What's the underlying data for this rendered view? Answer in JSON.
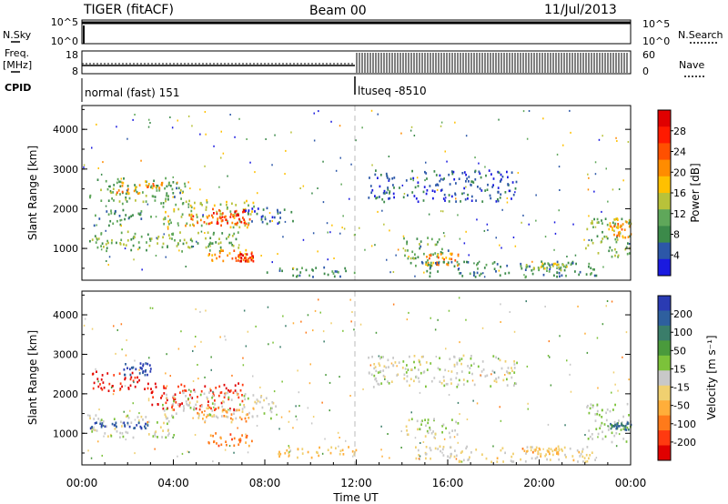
{
  "header": {
    "radar": "TIGER (fitACF)",
    "beam": "Beam 00",
    "date": "11/Jul/2013"
  },
  "strip": {
    "nsky_label": "N.Sky",
    "nsearch_label": "N.Search",
    "freq_label_1": "Freq.",
    "freq_label_2": "[MHz]",
    "nave_label": "Nave",
    "cpid_label": "CPID",
    "left_ticks_top": [
      "10^5",
      "10^0"
    ],
    "right_ticks_top": [
      "10^5",
      "10^0"
    ],
    "left_ticks_freq": [
      "18",
      "8"
    ],
    "right_ticks_nave": [
      "60",
      "0"
    ],
    "cpid_1": "normal (fast) 151",
    "cpid_2": "ltuseq -8510"
  },
  "colors": {
    "power": [
      "#1a1adf",
      "#2c57a8",
      "#3c8a4a",
      "#5fa75a",
      "#b8c23a",
      "#ffc000",
      "#ff8c00",
      "#ff5000",
      "#ff1a00",
      "#e00000"
    ],
    "velocity": [
      "#2a3bb3",
      "#2e5f9e",
      "#3a7d6a",
      "#4a9a3c",
      "#7cc23a",
      "#c8c8c8",
      "#f0d070",
      "#ffae3a",
      "#ff7a1a",
      "#ff3a10",
      "#e00000"
    ]
  },
  "chart_data": [
    {
      "type": "heatmap",
      "panel": "power",
      "ylabel": "Slant Range [km]",
      "ylim": [
        200,
        4600
      ],
      "yticks": [
        "1000",
        "2000",
        "3000",
        "4000"
      ],
      "xlim": [
        "00:00",
        "24:00"
      ],
      "colorbar": {
        "label": "Power [dB]",
        "ticks": [
          "4",
          "8",
          "12",
          "16",
          "20",
          "24",
          "28"
        ],
        "range": [
          0,
          32
        ]
      },
      "regions": [
        {
          "t": [
            0.3,
            4.5
          ],
          "range": [
            2150,
            2800
          ],
          "value": 10
        },
        {
          "t": [
            1.5,
            3.5
          ],
          "range": [
            2400,
            2750
          ],
          "value": 20
        },
        {
          "t": [
            3.5,
            7.5
          ],
          "range": [
            1550,
            2250
          ],
          "value": 14
        },
        {
          "t": [
            5.5,
            7.2
          ],
          "range": [
            1650,
            2050
          ],
          "value": 26
        },
        {
          "t": [
            4.5,
            7.5
          ],
          "range": [
            1600,
            1900
          ],
          "value": 24
        },
        {
          "t": [
            0.3,
            7.0
          ],
          "range": [
            950,
            1450
          ],
          "value": 12
        },
        {
          "t": [
            5.5,
            7.5
          ],
          "range": [
            700,
            1000
          ],
          "value": 20
        },
        {
          "t": [
            6.8,
            7.5
          ],
          "range": [
            700,
            900
          ],
          "value": 28
        },
        {
          "t": [
            7.0,
            9.2
          ],
          "range": [
            1650,
            2050
          ],
          "value": 5
        },
        {
          "t": [
            0.5,
            3.0
          ],
          "range": [
            1600,
            2000
          ],
          "value": 8
        },
        {
          "t": [
            12.5,
            19.0
          ],
          "range": [
            2200,
            3000
          ],
          "value": 5
        },
        {
          "t": [
            14.0,
            16.0
          ],
          "range": [
            600,
            1300
          ],
          "value": 10
        },
        {
          "t": [
            15.0,
            16.5
          ],
          "range": [
            600,
            900
          ],
          "value": 20
        },
        {
          "t": [
            14.5,
            22.5
          ],
          "range": [
            300,
            700
          ],
          "value": 8
        },
        {
          "t": [
            19.2,
            21.2
          ],
          "range": [
            450,
            650
          ],
          "value": 14
        },
        {
          "t": [
            22.0,
            24.0
          ],
          "range": [
            800,
            1800
          ],
          "value": 12
        },
        {
          "t": [
            23.0,
            24.0
          ],
          "range": [
            1300,
            1800
          ],
          "value": 20
        },
        {
          "t": [
            8.0,
            12.0
          ],
          "range": [
            300,
            550
          ],
          "value": 8
        }
      ]
    },
    {
      "type": "heatmap",
      "panel": "velocity",
      "ylabel": "Slant Range [km]",
      "xlabel": "Time UT",
      "ylim": [
        200,
        4600
      ],
      "yticks": [
        "1000",
        "2000",
        "3000",
        "4000"
      ],
      "xlim": [
        "00:00",
        "24:00"
      ],
      "xticks": [
        "00:00",
        "04:00",
        "08:00",
        "12:00",
        "16:00",
        "20:00",
        "00:00"
      ],
      "colorbar": {
        "label": "Velocity [m s⁻¹]",
        "ticks": [
          "200",
          "100",
          "50",
          "15",
          "-15",
          "-50",
          "-100",
          "-200"
        ],
        "range": [
          -250,
          250
        ]
      },
      "regions": [
        {
          "t": [
            0.3,
            3.0
          ],
          "range": [
            2100,
            2600
          ],
          "value": -210
        },
        {
          "t": [
            1.8,
            3.0
          ],
          "range": [
            2500,
            2800
          ],
          "value": 200
        },
        {
          "t": [
            3.0,
            7.0
          ],
          "range": [
            1600,
            2300
          ],
          "value": -200
        },
        {
          "t": [
            3.5,
            8.5
          ],
          "range": [
            1400,
            2100
          ],
          "value": 0
        },
        {
          "t": [
            0.3,
            4.0
          ],
          "range": [
            900,
            1500
          ],
          "value": 0
        },
        {
          "t": [
            0.3,
            3.0
          ],
          "range": [
            1150,
            1300
          ],
          "value": 200
        },
        {
          "t": [
            5.5,
            7.5
          ],
          "range": [
            700,
            1050
          ],
          "value": -150
        },
        {
          "t": [
            5.0,
            7.5
          ],
          "range": [
            1300,
            1700
          ],
          "value": -100
        },
        {
          "t": [
            8.5,
            12.0
          ],
          "range": [
            400,
            700
          ],
          "value": -60
        },
        {
          "t": [
            12.5,
            19.0
          ],
          "range": [
            2200,
            3000
          ],
          "value": 0
        },
        {
          "t": [
            14.0,
            16.5
          ],
          "range": [
            900,
            1400
          ],
          "value": 0
        },
        {
          "t": [
            14.5,
            22.5
          ],
          "range": [
            300,
            700
          ],
          "value": -30
        },
        {
          "t": [
            19.2,
            21.0
          ],
          "range": [
            500,
            650
          ],
          "value": -80
        },
        {
          "t": [
            22.0,
            24.0
          ],
          "range": [
            800,
            1800
          ],
          "value": 20
        },
        {
          "t": [
            23.0,
            24.0
          ],
          "range": [
            1100,
            1300
          ],
          "value": 150
        }
      ]
    }
  ]
}
